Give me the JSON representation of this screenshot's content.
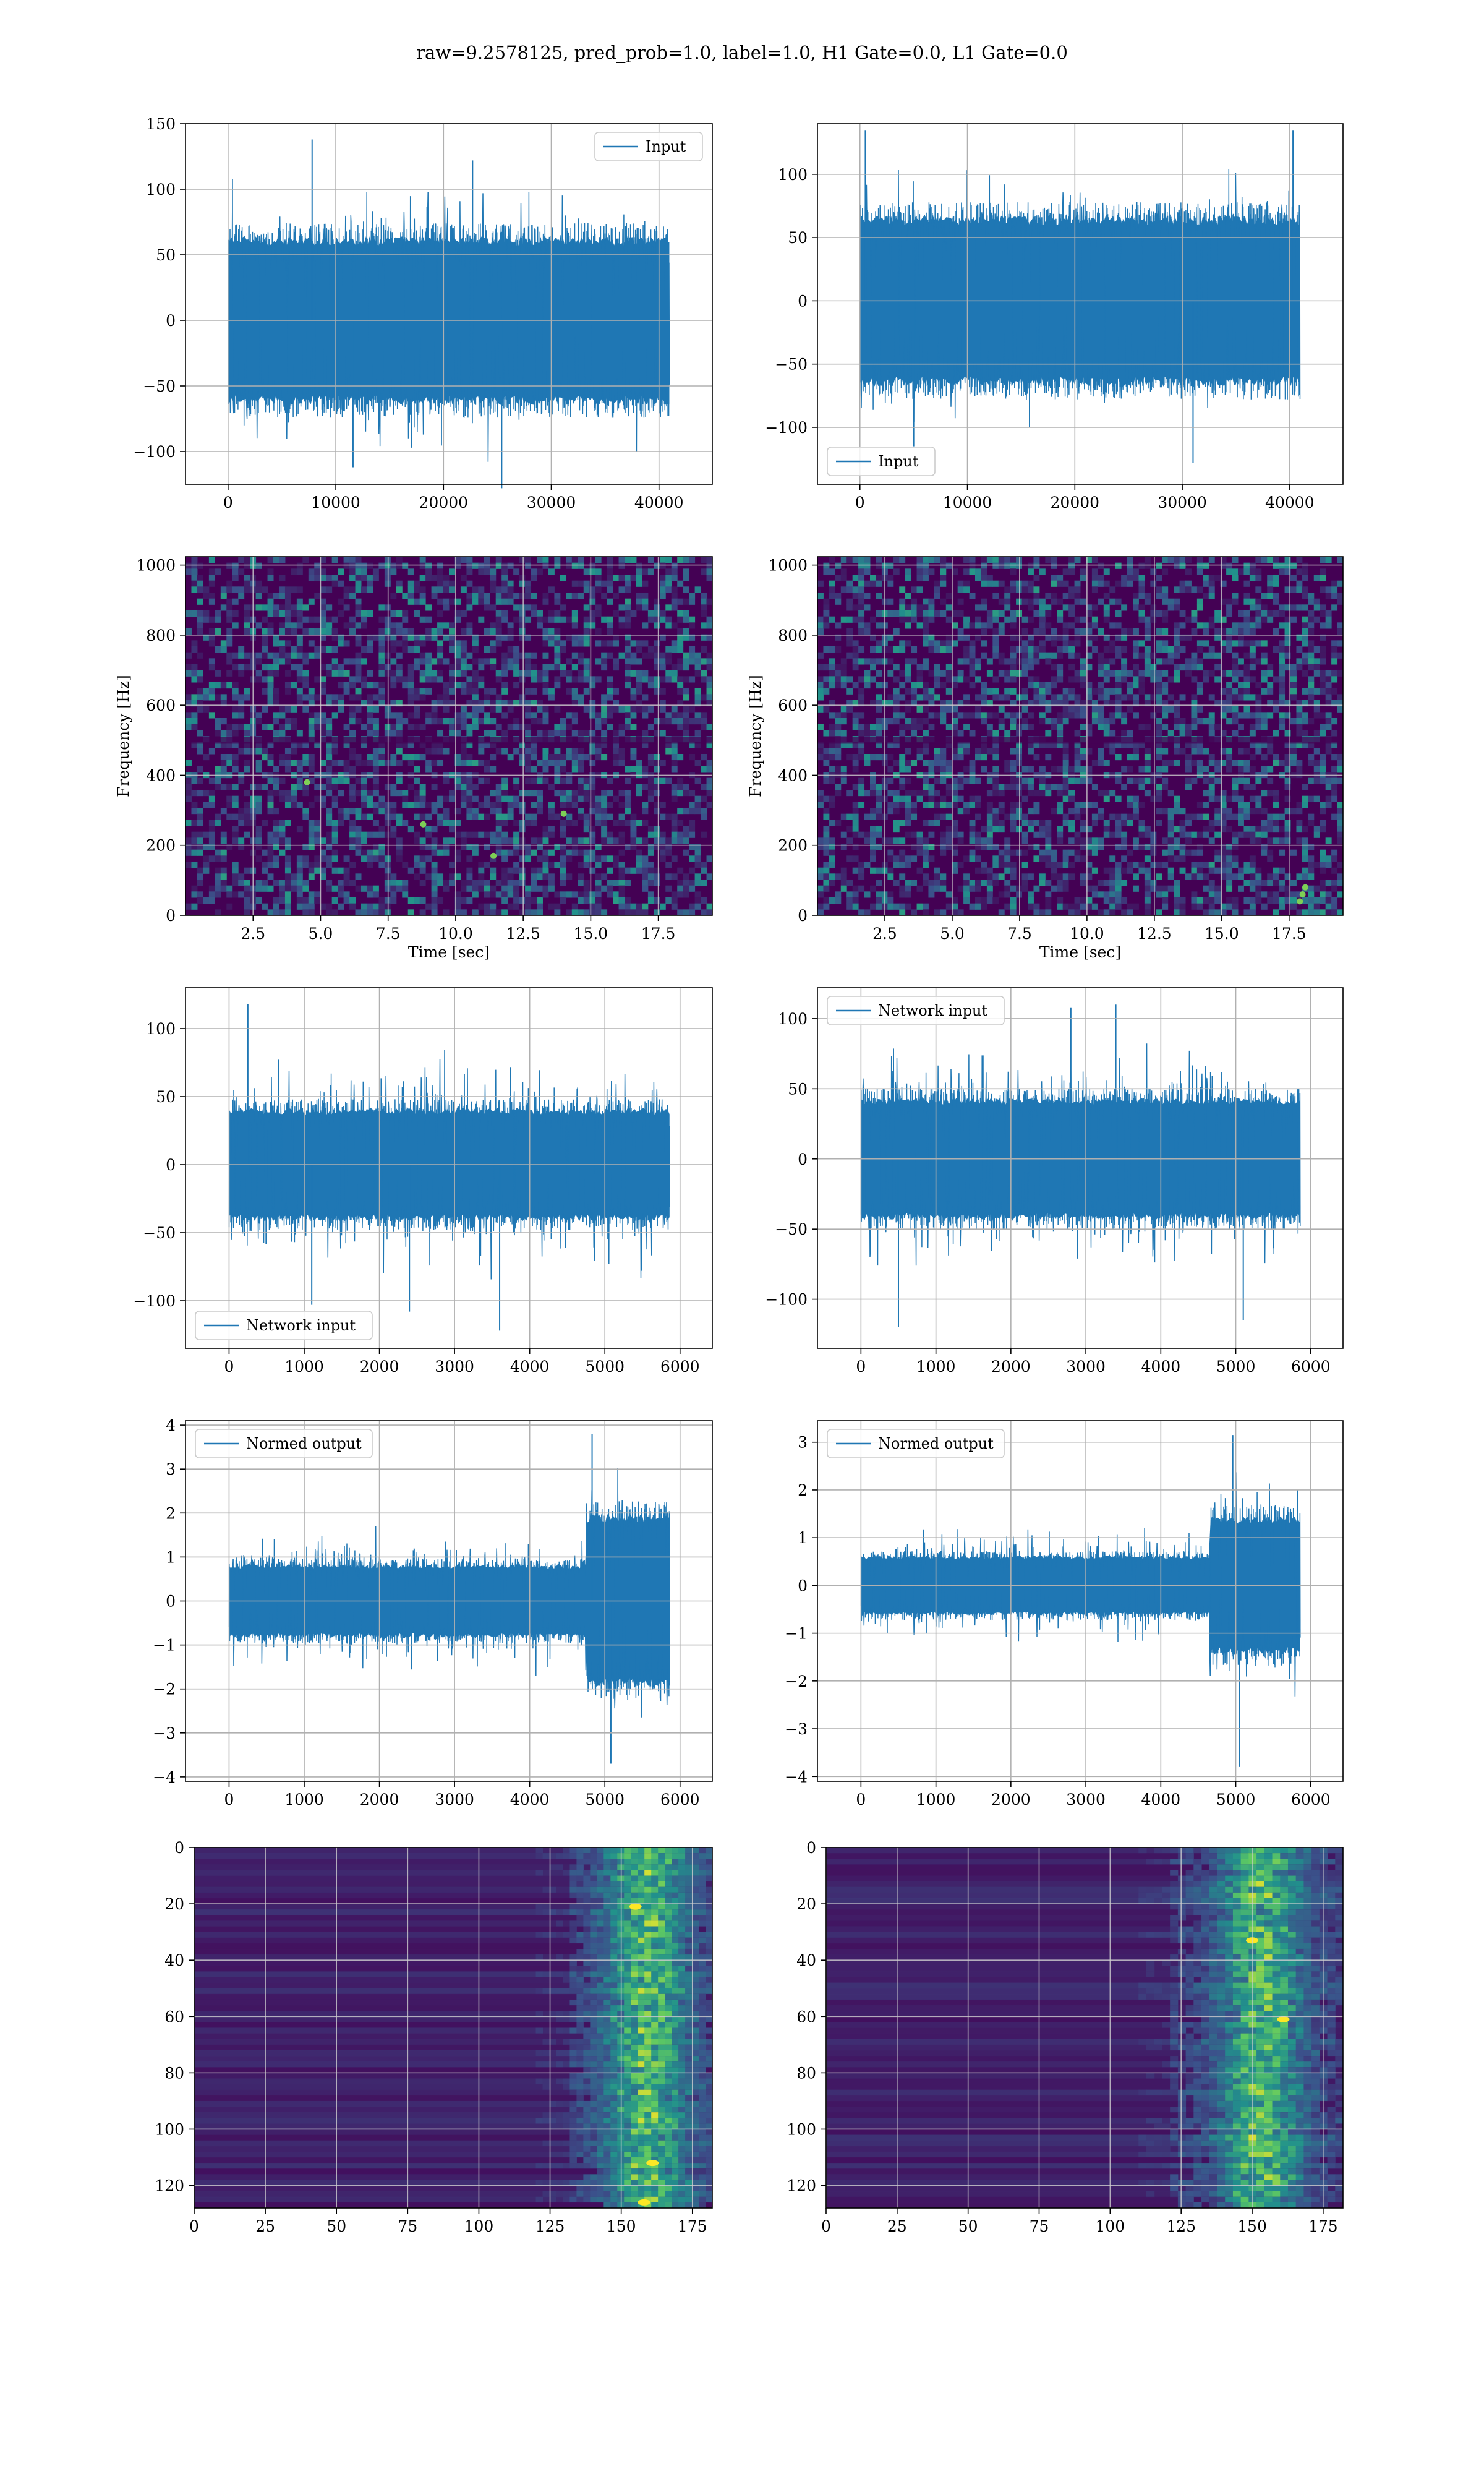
{
  "suptitle": "raw=9.2578125, pred_prob=1.0, label=1.0, H1 Gate=0.0, L1 Gate=0.0",
  "colors": {
    "series": "#1f77b4",
    "grid": "#b0b0b0",
    "viridis_dark": "#440154",
    "viridis_mid": "#3b528b",
    "viridis_teal": "#21918c",
    "viridis_green": "#5ec962",
    "viridis_yellow": "#fde725"
  },
  "chart_data": [
    {
      "id": "input-h1",
      "type": "line",
      "series_name": "Input",
      "legend": "upper right",
      "xlim": [
        -2000,
        43000
      ],
      "ylim": [
        -125,
        150
      ],
      "xticks": [
        0,
        10000,
        20000,
        30000,
        40000
      ],
      "yticks": [
        -100,
        -50,
        0,
        50,
        100,
        150
      ],
      "xlabel": "",
      "ylabel": "",
      "x_range": [
        0,
        40960
      ],
      "core": 62,
      "spike": 110,
      "envelope": [
        {
          "x": 7800,
          "up": 138
        },
        {
          "x": 22700,
          "up": 122
        },
        {
          "x": 25400,
          "down": -128
        },
        {
          "x": 11600,
          "down": -112
        }
      ]
    },
    {
      "id": "input-l1",
      "type": "line",
      "series_name": "Input",
      "legend": "lower left",
      "xlim": [
        -2000,
        43000
      ],
      "ylim": [
        -145,
        140
      ],
      "xticks": [
        0,
        10000,
        20000,
        30000,
        40000
      ],
      "yticks": [
        -100,
        -50,
        0,
        50,
        100
      ],
      "xlabel": "",
      "ylabel": "",
      "x_range": [
        0,
        40960
      ],
      "core": 65,
      "spike": 108,
      "envelope": [
        {
          "x": 500,
          "up": 135
        },
        {
          "x": 40300,
          "up": 135
        },
        {
          "x": 31000,
          "down": -128
        },
        {
          "x": 5000,
          "down": -115
        }
      ]
    },
    {
      "id": "spec-h1",
      "type": "heatmap",
      "kind": "spectrogram",
      "xlim": [
        0,
        19.5
      ],
      "ylim": [
        0,
        1024
      ],
      "xticks": [
        2.5,
        5.0,
        7.5,
        10.0,
        12.5,
        15.0,
        17.5
      ],
      "xticklabels": [
        "2.5",
        "5.0",
        "7.5",
        "10.0",
        "12.5",
        "15.0",
        "17.5"
      ],
      "yticks": [
        0,
        200,
        400,
        600,
        800,
        1000
      ],
      "xlabel": "Time [sec]",
      "ylabel": "Frequency [Hz]",
      "hot": [
        [
          8.8,
          260
        ],
        [
          11.4,
          170
        ],
        [
          14.0,
          290
        ],
        [
          4.5,
          380
        ]
      ]
    },
    {
      "id": "spec-l1",
      "type": "heatmap",
      "kind": "spectrogram",
      "xlim": [
        0,
        19.5
      ],
      "ylim": [
        0,
        1024
      ],
      "xticks": [
        2.5,
        5.0,
        7.5,
        10.0,
        12.5,
        15.0,
        17.5
      ],
      "xticklabels": [
        "2.5",
        "5.0",
        "7.5",
        "10.0",
        "12.5",
        "15.0",
        "17.5"
      ],
      "yticks": [
        0,
        200,
        400,
        600,
        800,
        1000
      ],
      "xlabel": "Time [sec]",
      "ylabel": "Frequency [Hz]",
      "hot": [
        [
          18.0,
          60
        ],
        [
          18.1,
          80
        ],
        [
          17.9,
          40
        ]
      ]
    },
    {
      "id": "network-h1",
      "type": "line",
      "series_name": "Network input",
      "legend": "lower left",
      "xlim": [
        -300,
        6150
      ],
      "ylim": [
        -135,
        130
      ],
      "xticks": [
        0,
        1000,
        2000,
        3000,
        4000,
        5000,
        6000
      ],
      "yticks": [
        -100,
        -50,
        0,
        50,
        100
      ],
      "xlabel": "",
      "ylabel": "",
      "x_range": [
        0,
        5860
      ],
      "core": 40,
      "spike": 85,
      "envelope": [
        {
          "x": 250,
          "up": 118
        },
        {
          "x": 3600,
          "down": -122
        },
        {
          "x": 2400,
          "down": -108
        },
        {
          "x": 1100,
          "down": -103
        }
      ]
    },
    {
      "id": "network-l1",
      "type": "line",
      "series_name": "Network input",
      "legend": "upper left",
      "xlim": [
        -300,
        6150
      ],
      "ylim": [
        -135,
        122
      ],
      "xticks": [
        0,
        1000,
        2000,
        3000,
        4000,
        5000,
        6000
      ],
      "yticks": [
        -100,
        -50,
        0,
        50,
        100
      ],
      "xlabel": "",
      "ylabel": "",
      "x_range": [
        0,
        5860
      ],
      "core": 42,
      "spike": 85,
      "envelope": [
        {
          "x": 3400,
          "up": 110
        },
        {
          "x": 2800,
          "up": 108
        },
        {
          "x": 500,
          "down": -120
        },
        {
          "x": 5100,
          "down": -115
        }
      ]
    },
    {
      "id": "normed-h1",
      "type": "line",
      "series_name": "Normed output",
      "legend": "upper left",
      "xlim": [
        -300,
        6150
      ],
      "ylim": [
        -4.1,
        4.1
      ],
      "xticks": [
        0,
        1000,
        2000,
        3000,
        4000,
        5000,
        6000
      ],
      "yticks": [
        -4,
        -3,
        -2,
        -1,
        0,
        1,
        2,
        3,
        4
      ],
      "xlabel": "",
      "ylabel": "",
      "x_range": [
        0,
        5860
      ],
      "core": 0.8,
      "spike": 1.8,
      "burst_start": 4750,
      "burst_core": 1.9,
      "burst_spike": 3.2,
      "envelope": [
        {
          "x": 4830,
          "up": 3.8
        },
        {
          "x": 5080,
          "down": -3.7
        }
      ]
    },
    {
      "id": "normed-l1",
      "type": "line",
      "series_name": "Normed output",
      "legend": "upper left",
      "xlim": [
        -300,
        6150
      ],
      "ylim": [
        -4.1,
        3.45
      ],
      "xticks": [
        0,
        1000,
        2000,
        3000,
        4000,
        5000,
        6000
      ],
      "yticks": [
        -4,
        -3,
        -2,
        -1,
        0,
        1,
        2,
        3
      ],
      "xlabel": "",
      "ylabel": "",
      "x_range": [
        0,
        5860
      ],
      "core": 0.6,
      "spike": 1.3,
      "burst_start": 4650,
      "burst_core": 1.4,
      "burst_spike": 2.8,
      "envelope": [
        {
          "x": 4960,
          "up": 3.15
        },
        {
          "x": 5050,
          "down": -3.8
        }
      ]
    },
    {
      "id": "qtrans-h1",
      "type": "heatmap",
      "kind": "qtransform",
      "xlim": [
        0,
        182
      ],
      "ylim": [
        128,
        0
      ],
      "xticks": [
        0,
        25,
        50,
        75,
        100,
        125,
        150,
        175
      ],
      "yticks": [
        0,
        20,
        40,
        60,
        80,
        100,
        120
      ],
      "xlabel": "",
      "ylabel": "",
      "onset": 120,
      "peak": 158,
      "hot": [
        [
          158,
          126
        ],
        [
          161,
          112
        ],
        [
          155,
          21
        ]
      ]
    },
    {
      "id": "qtrans-l1",
      "type": "heatmap",
      "kind": "qtransform",
      "xlim": [
        0,
        182
      ],
      "ylim": [
        128,
        0
      ],
      "xticks": [
        0,
        25,
        50,
        75,
        100,
        125,
        150,
        175
      ],
      "yticks": [
        0,
        20,
        40,
        60,
        80,
        100,
        120
      ],
      "xlabel": "",
      "ylabel": "",
      "onset": 110,
      "peak": 152,
      "hot": [
        [
          161,
          61
        ],
        [
          150,
          33
        ]
      ]
    }
  ]
}
